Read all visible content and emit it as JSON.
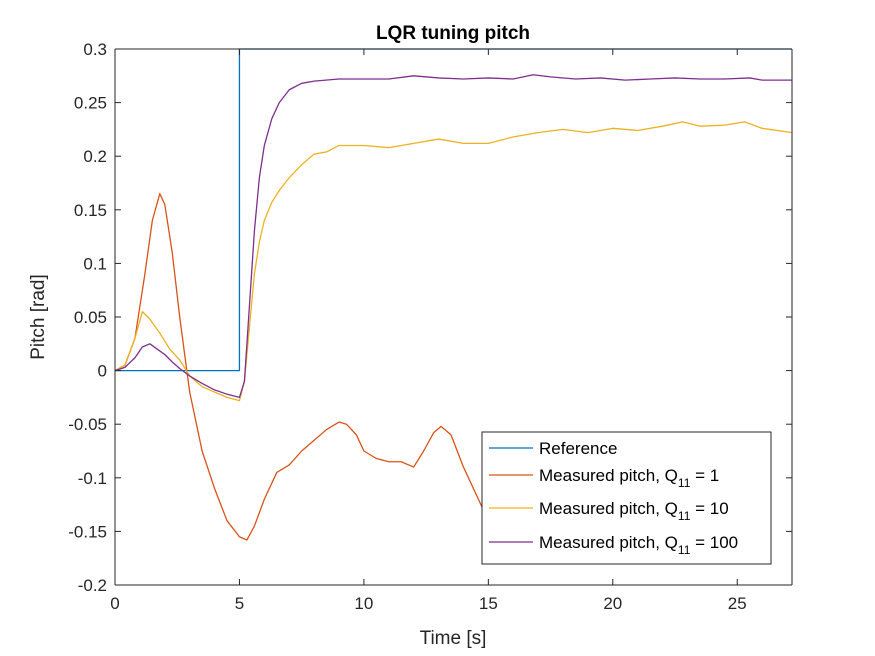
{
  "chart_data": {
    "type": "line",
    "title": "LQR tuning pitch",
    "xlabel": "Time [s]",
    "ylabel": "Pitch [rad]",
    "xlim": [
      0,
      27.2
    ],
    "ylim": [
      -0.2,
      0.3
    ],
    "x_ticks": [
      0,
      5,
      10,
      15,
      20,
      25
    ],
    "x_tick_labels": [
      "0",
      "5",
      "10",
      "15",
      "20",
      "25"
    ],
    "y_ticks": [
      -0.2,
      -0.15,
      -0.1,
      -0.05,
      0,
      0.05,
      0.1,
      0.15,
      0.2,
      0.25,
      0.3
    ],
    "y_tick_labels": [
      "-0.2",
      "-0.15",
      "-0.1",
      "-0.05",
      "0",
      "0.05",
      "0.1",
      "0.15",
      "0.2",
      "0.25",
      "0.3"
    ],
    "grid": false,
    "legend_position": "bottom-right",
    "series": [
      {
        "name": "Reference",
        "legend_main": "Reference",
        "legend_sub": "",
        "legend_tail": "",
        "color": "#0072BD",
        "x": [
          0,
          5,
          5,
          27.2
        ],
        "y": [
          0,
          0,
          0.3,
          0.3
        ]
      },
      {
        "name": "Measured pitch, Q11 = 1",
        "legend_main": "Measured pitch, Q",
        "legend_sub": "11",
        "legend_tail": " = 1",
        "color": "#D95319",
        "x": [
          0,
          0.4,
          0.8,
          1.2,
          1.5,
          1.8,
          2.0,
          2.3,
          2.6,
          3.0,
          3.5,
          4.0,
          4.5,
          5.0,
          5.3,
          5.6,
          6.0,
          6.5,
          7.0,
          7.5,
          8.0,
          8.5,
          9.0,
          9.3,
          9.7,
          10.0,
          10.5,
          11.0,
          11.5,
          12.0,
          12.4,
          12.8,
          13.1,
          13.5,
          14.0,
          14.5,
          14.8
        ],
        "y": [
          0,
          0.005,
          0.03,
          0.09,
          0.14,
          0.165,
          0.155,
          0.11,
          0.05,
          -0.02,
          -0.075,
          -0.11,
          -0.14,
          -0.155,
          -0.158,
          -0.145,
          -0.12,
          -0.095,
          -0.088,
          -0.075,
          -0.065,
          -0.055,
          -0.048,
          -0.05,
          -0.06,
          -0.075,
          -0.082,
          -0.085,
          -0.085,
          -0.09,
          -0.075,
          -0.058,
          -0.052,
          -0.06,
          -0.09,
          -0.115,
          -0.13
        ]
      },
      {
        "name": "Measured pitch, Q11 = 10",
        "legend_main": "Measured pitch, Q",
        "legend_sub": "11",
        "legend_tail": " = 10",
        "color": "#EDB120",
        "x": [
          0,
          0.4,
          0.8,
          1.1,
          1.4,
          1.8,
          2.2,
          2.6,
          3.0,
          3.5,
          4.0,
          4.5,
          5.0,
          5.2,
          5.4,
          5.6,
          5.8,
          6.0,
          6.3,
          6.6,
          7.0,
          7.5,
          8.0,
          8.5,
          9.0,
          10.0,
          11.0,
          12.0,
          13.0,
          14.0,
          15.0,
          16.0,
          17.0,
          18.0,
          19.0,
          20.0,
          21.0,
          22.0,
          22.8,
          23.5,
          24.5,
          25.3,
          26.0,
          27.2
        ],
        "y": [
          0,
          0.005,
          0.03,
          0.055,
          0.048,
          0.035,
          0.02,
          0.01,
          -0.005,
          -0.015,
          -0.02,
          -0.025,
          -0.028,
          -0.01,
          0.04,
          0.09,
          0.12,
          0.14,
          0.157,
          0.168,
          0.18,
          0.192,
          0.202,
          0.204,
          0.21,
          0.21,
          0.208,
          0.212,
          0.216,
          0.212,
          0.212,
          0.218,
          0.222,
          0.225,
          0.222,
          0.226,
          0.224,
          0.228,
          0.232,
          0.228,
          0.229,
          0.232,
          0.226,
          0.222
        ]
      },
      {
        "name": "Measured pitch, Q11 = 100",
        "legend_main": "Measured pitch, Q",
        "legend_sub": "11",
        "legend_tail": " = 100",
        "color": "#7E2F8E",
        "x": [
          0,
          0.4,
          0.8,
          1.1,
          1.4,
          1.7,
          2.0,
          2.3,
          2.6,
          3.0,
          3.5,
          4.0,
          4.5,
          5.0,
          5.2,
          5.4,
          5.6,
          5.8,
          6.0,
          6.3,
          6.6,
          7.0,
          7.5,
          8.0,
          9.0,
          10.0,
          11.0,
          12.0,
          13.0,
          14.0,
          15.0,
          16.0,
          16.8,
          17.5,
          18.5,
          19.5,
          20.5,
          21.5,
          22.5,
          23.5,
          24.5,
          25.5,
          26.0,
          27.2
        ],
        "y": [
          0,
          0.003,
          0.012,
          0.022,
          0.025,
          0.02,
          0.015,
          0.008,
          0.002,
          -0.005,
          -0.012,
          -0.018,
          -0.022,
          -0.025,
          -0.01,
          0.06,
          0.13,
          0.18,
          0.21,
          0.235,
          0.25,
          0.262,
          0.268,
          0.27,
          0.272,
          0.272,
          0.272,
          0.275,
          0.273,
          0.272,
          0.273,
          0.272,
          0.276,
          0.274,
          0.272,
          0.273,
          0.271,
          0.272,
          0.273,
          0.272,
          0.272,
          0.273,
          0.271,
          0.271
        ]
      }
    ]
  }
}
